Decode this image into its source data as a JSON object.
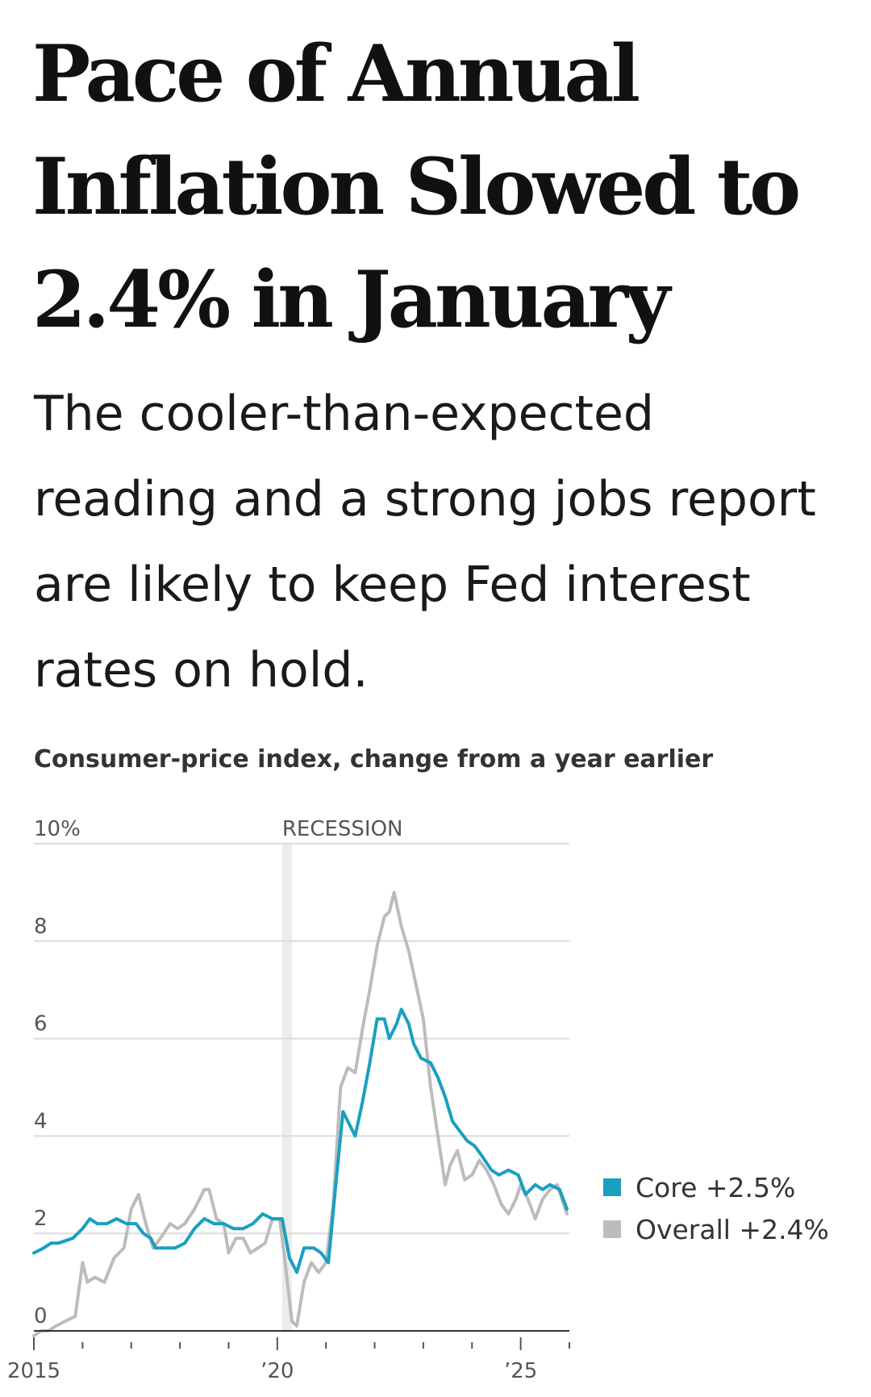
{
  "headline": "Pace of Annual Inflation Slowed to 2.4% in January",
  "dek": "The cooler-than-expected reading and a strong jobs report are likely to keep Fed interest rates on hold.",
  "colors": {
    "core": "#1a9fc1",
    "overall": "#bcbcbc",
    "grid": "#dcdcdc",
    "recession": "#ececec"
  },
  "chart_data": {
    "type": "line",
    "title": "Consumer-price index, change from a year earlier",
    "xlabel": "",
    "ylabel": "",
    "ylim": [
      0,
      10
    ],
    "xlim": [
      2015.0,
      2026.0
    ],
    "yticks": [
      0,
      2,
      4,
      6,
      8,
      10
    ],
    "ytick_labels": [
      "0",
      "2",
      "4",
      "6",
      "8",
      "10%"
    ],
    "xticks": [
      2015,
      2020,
      2025
    ],
    "xtick_labels": [
      "2015",
      "’20",
      "’25"
    ],
    "minor_xticks": [
      2016,
      2017,
      2018,
      2019,
      2021,
      2022,
      2023,
      2024,
      2026
    ],
    "recession": {
      "label": "RECESSION",
      "start": 2020.1,
      "end": 2020.3
    },
    "grid": true,
    "legend_position": "right",
    "series": [
      {
        "name": "Core",
        "legend_label": "Core +2.5%",
        "points": [
          [
            2015.0,
            1.6
          ],
          [
            2015.2,
            1.7
          ],
          [
            2015.35,
            1.8
          ],
          [
            2015.5,
            1.8
          ],
          [
            2015.8,
            1.9
          ],
          [
            2016.0,
            2.1
          ],
          [
            2016.15,
            2.3
          ],
          [
            2016.3,
            2.2
          ],
          [
            2016.5,
            2.2
          ],
          [
            2016.7,
            2.3
          ],
          [
            2016.9,
            2.2
          ],
          [
            2017.1,
            2.2
          ],
          [
            2017.25,
            2.0
          ],
          [
            2017.4,
            1.9
          ],
          [
            2017.5,
            1.7
          ],
          [
            2017.7,
            1.7
          ],
          [
            2017.9,
            1.7
          ],
          [
            2018.1,
            1.8
          ],
          [
            2018.3,
            2.1
          ],
          [
            2018.5,
            2.3
          ],
          [
            2018.7,
            2.2
          ],
          [
            2018.9,
            2.2
          ],
          [
            2019.1,
            2.1
          ],
          [
            2019.3,
            2.1
          ],
          [
            2019.5,
            2.2
          ],
          [
            2019.7,
            2.4
          ],
          [
            2019.9,
            2.3
          ],
          [
            2020.1,
            2.3
          ],
          [
            2020.25,
            1.5
          ],
          [
            2020.4,
            1.2
          ],
          [
            2020.55,
            1.7
          ],
          [
            2020.75,
            1.7
          ],
          [
            2020.9,
            1.6
          ],
          [
            2021.05,
            1.4
          ],
          [
            2021.2,
            3.0
          ],
          [
            2021.35,
            4.5
          ],
          [
            2021.5,
            4.2
          ],
          [
            2021.6,
            4.0
          ],
          [
            2021.75,
            4.7
          ],
          [
            2021.9,
            5.5
          ],
          [
            2022.05,
            6.4
          ],
          [
            2022.2,
            6.4
          ],
          [
            2022.3,
            6.0
          ],
          [
            2022.45,
            6.3
          ],
          [
            2022.55,
            6.6
          ],
          [
            2022.7,
            6.3
          ],
          [
            2022.8,
            5.9
          ],
          [
            2022.95,
            5.6
          ],
          [
            2023.15,
            5.5
          ],
          [
            2023.3,
            5.2
          ],
          [
            2023.45,
            4.8
          ],
          [
            2023.6,
            4.3
          ],
          [
            2023.75,
            4.1
          ],
          [
            2023.9,
            3.9
          ],
          [
            2024.05,
            3.8
          ],
          [
            2024.2,
            3.6
          ],
          [
            2024.4,
            3.3
          ],
          [
            2024.55,
            3.2
          ],
          [
            2024.75,
            3.3
          ],
          [
            2024.95,
            3.2
          ],
          [
            2025.1,
            2.8
          ],
          [
            2025.3,
            3.0
          ],
          [
            2025.45,
            2.9
          ],
          [
            2025.6,
            3.0
          ],
          [
            2025.8,
            2.9
          ],
          [
            2025.95,
            2.5
          ]
        ]
      },
      {
        "name": "Overall",
        "legend_label": "Overall +2.4%",
        "points": [
          [
            2015.0,
            -0.1
          ],
          [
            2015.15,
            0.0
          ],
          [
            2015.3,
            0.0
          ],
          [
            2015.45,
            0.1
          ],
          [
            2015.65,
            0.2
          ],
          [
            2015.85,
            0.3
          ],
          [
            2016.0,
            1.4
          ],
          [
            2016.1,
            1.0
          ],
          [
            2016.25,
            1.1
          ],
          [
            2016.45,
            1.0
          ],
          [
            2016.65,
            1.5
          ],
          [
            2016.85,
            1.7
          ],
          [
            2017.0,
            2.5
          ],
          [
            2017.15,
            2.8
          ],
          [
            2017.3,
            2.2
          ],
          [
            2017.45,
            1.7
          ],
          [
            2017.6,
            1.9
          ],
          [
            2017.8,
            2.2
          ],
          [
            2017.95,
            2.1
          ],
          [
            2018.1,
            2.2
          ],
          [
            2018.3,
            2.5
          ],
          [
            2018.5,
            2.9
          ],
          [
            2018.6,
            2.9
          ],
          [
            2018.75,
            2.3
          ],
          [
            2018.9,
            2.2
          ],
          [
            2019.0,
            1.6
          ],
          [
            2019.15,
            1.9
          ],
          [
            2019.3,
            1.9
          ],
          [
            2019.45,
            1.6
          ],
          [
            2019.6,
            1.7
          ],
          [
            2019.75,
            1.8
          ],
          [
            2019.9,
            2.3
          ],
          [
            2020.05,
            2.3
          ],
          [
            2020.15,
            1.5
          ],
          [
            2020.3,
            0.2
          ],
          [
            2020.4,
            0.1
          ],
          [
            2020.55,
            1.0
          ],
          [
            2020.7,
            1.4
          ],
          [
            2020.85,
            1.2
          ],
          [
            2021.0,
            1.4
          ],
          [
            2021.15,
            2.6
          ],
          [
            2021.3,
            5.0
          ],
          [
            2021.45,
            5.4
          ],
          [
            2021.6,
            5.3
          ],
          [
            2021.75,
            6.2
          ],
          [
            2021.9,
            7.0
          ],
          [
            2022.05,
            7.9
          ],
          [
            2022.2,
            8.5
          ],
          [
            2022.3,
            8.6
          ],
          [
            2022.4,
            9.0
          ],
          [
            2022.55,
            8.3
          ],
          [
            2022.7,
            7.8
          ],
          [
            2022.85,
            7.1
          ],
          [
            2023.0,
            6.4
          ],
          [
            2023.15,
            5.0
          ],
          [
            2023.3,
            4.0
          ],
          [
            2023.45,
            3.0
          ],
          [
            2023.55,
            3.4
          ],
          [
            2023.7,
            3.7
          ],
          [
            2023.85,
            3.1
          ],
          [
            2024.0,
            3.2
          ],
          [
            2024.15,
            3.5
          ],
          [
            2024.3,
            3.3
          ],
          [
            2024.45,
            3.0
          ],
          [
            2024.6,
            2.6
          ],
          [
            2024.75,
            2.4
          ],
          [
            2024.9,
            2.7
          ],
          [
            2025.0,
            3.0
          ],
          [
            2025.15,
            2.7
          ],
          [
            2025.3,
            2.3
          ],
          [
            2025.45,
            2.7
          ],
          [
            2025.6,
            2.9
          ],
          [
            2025.75,
            3.0
          ],
          [
            2025.95,
            2.4
          ]
        ]
      }
    ]
  }
}
